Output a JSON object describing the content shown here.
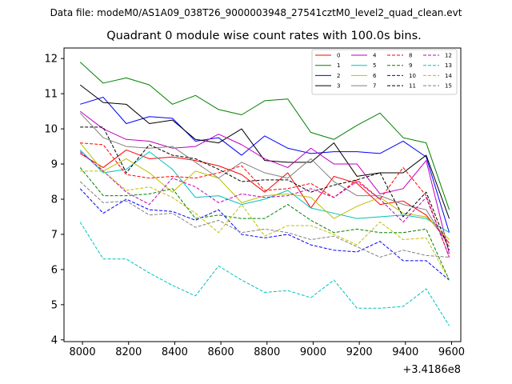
{
  "chart_data": {
    "type": "line",
    "suptitle": "Data file: modeM0/AS1A09_038T26_9000003948_27541cztM0_level2_quad_clean.evt",
    "title": "Quadrant 0 module wise count rates with 100.0s bins.",
    "xlabel": "",
    "ylabel": "",
    "x_offset_label": "+3.4186e8",
    "xlim": [
      7920,
      9640
    ],
    "ylim": [
      3.95,
      12.3
    ],
    "x_ticks": [
      8000,
      8200,
      8400,
      8600,
      8800,
      9000,
      9200,
      9400,
      9600
    ],
    "x_tick_labels": [
      "8000",
      "8200",
      "8400",
      "8600",
      "8800",
      "9000",
      "9200",
      "9400",
      "9600"
    ],
    "y_ticks": [
      4,
      5,
      6,
      7,
      8,
      9,
      10,
      11,
      12
    ],
    "y_tick_labels": [
      "4",
      "5",
      "6",
      "7",
      "8",
      "9",
      "10",
      "11",
      "12"
    ],
    "legend_position": "top-right",
    "x": [
      7990,
      8090,
      8190,
      8290,
      8390,
      8490,
      8590,
      8690,
      8790,
      8890,
      8990,
      9090,
      9190,
      9290,
      9390,
      9490,
      9590
    ],
    "series": [
      {
        "name": "0",
        "color": "#ff0000",
        "dash": "solid",
        "values": [
          9.3,
          8.9,
          9.4,
          9.15,
          9.2,
          9.1,
          8.95,
          8.7,
          8.2,
          8.75,
          7.75,
          8.65,
          8.45,
          7.85,
          7.95,
          7.55,
          6.75
        ]
      },
      {
        "name": "1",
        "color": "#008000",
        "dash": "solid",
        "values": [
          11.9,
          11.3,
          11.45,
          11.25,
          10.7,
          10.95,
          10.55,
          10.4,
          10.8,
          10.85,
          9.9,
          9.7,
          10.1,
          10.45,
          9.75,
          9.6,
          7.7
        ]
      },
      {
        "name": "2",
        "color": "#0000ff",
        "dash": "solid",
        "values": [
          10.7,
          10.9,
          10.15,
          10.35,
          10.3,
          9.65,
          9.75,
          9.25,
          9.8,
          9.45,
          9.3,
          9.35,
          9.35,
          9.3,
          9.65,
          9.2,
          7.05
        ]
      },
      {
        "name": "3",
        "color": "#000000",
        "dash": "solid",
        "values": [
          11.25,
          10.75,
          10.7,
          10.15,
          10.25,
          9.7,
          9.6,
          10.0,
          9.1,
          9.05,
          9.05,
          9.6,
          8.65,
          8.75,
          8.75,
          9.25,
          7.45
        ]
      },
      {
        "name": "4",
        "color": "#bf00bf",
        "dash": "solid",
        "values": [
          10.5,
          10.0,
          9.7,
          9.65,
          9.45,
          9.5,
          9.85,
          9.55,
          9.15,
          8.9,
          9.45,
          9.0,
          9.0,
          8.15,
          8.3,
          9.1,
          6.45
        ]
      },
      {
        "name": "5",
        "color": "#00bfbf",
        "dash": "solid",
        "values": [
          9.4,
          8.75,
          8.85,
          9.35,
          8.85,
          8.05,
          8.1,
          7.85,
          8.0,
          8.25,
          7.75,
          7.6,
          7.45,
          7.5,
          7.55,
          7.45,
          7.05
        ]
      },
      {
        "name": "6",
        "color": "#bfbf00",
        "dash": "solid",
        "values": [
          9.6,
          8.8,
          9.15,
          8.75,
          8.2,
          8.8,
          8.6,
          7.9,
          8.1,
          8.15,
          8.05,
          7.45,
          7.8,
          8.05,
          7.6,
          7.5,
          6.85
        ]
      },
      {
        "name": "7",
        "color": "#808080",
        "dash": "solid",
        "values": [
          10.45,
          9.75,
          9.5,
          9.45,
          9.5,
          9.05,
          8.6,
          9.05,
          8.75,
          8.6,
          9.15,
          8.5,
          8.1,
          8.1,
          7.85,
          7.7,
          6.65
        ]
      },
      {
        "name": "8",
        "color": "#ff0000",
        "dash": "dashed",
        "values": [
          9.6,
          9.55,
          8.7,
          8.6,
          8.65,
          8.6,
          8.75,
          8.95,
          8.25,
          8.3,
          8.45,
          8.05,
          8.55,
          8.0,
          8.9,
          8.1,
          6.35
        ]
      },
      {
        "name": "9",
        "color": "#008000",
        "dash": "dashed",
        "values": [
          8.9,
          8.1,
          8.1,
          8.15,
          8.3,
          7.45,
          7.55,
          7.45,
          7.45,
          7.85,
          7.4,
          7.05,
          7.15,
          7.05,
          7.05,
          7.15,
          5.7
        ]
      },
      {
        "name": "10",
        "color": "#0000ff",
        "dash": "dashed",
        "values": [
          8.3,
          7.6,
          8.0,
          7.7,
          7.65,
          7.4,
          7.7,
          7.0,
          6.9,
          7.0,
          6.7,
          6.55,
          6.5,
          6.8,
          6.25,
          6.25,
          5.7
        ]
      },
      {
        "name": "11",
        "color": "#000000",
        "dash": "dashed",
        "values": [
          10.05,
          10.05,
          8.75,
          9.55,
          9.25,
          9.15,
          8.85,
          8.5,
          8.55,
          8.55,
          8.2,
          8.4,
          8.55,
          8.75,
          7.5,
          8.2,
          6.55
        ]
      },
      {
        "name": "12",
        "color": "#bf00bf",
        "dash": "dashed",
        "values": [
          9.35,
          8.8,
          8.2,
          7.85,
          8.6,
          8.35,
          7.9,
          8.15,
          8.05,
          8.1,
          8.3,
          8.05,
          8.5,
          8.0,
          7.35,
          8.05,
          6.35
        ]
      },
      {
        "name": "13",
        "color": "#00bfbf",
        "dash": "dashed",
        "values": [
          7.35,
          6.3,
          6.3,
          5.9,
          5.55,
          5.25,
          6.1,
          5.7,
          5.35,
          5.4,
          5.2,
          5.7,
          4.9,
          4.9,
          4.95,
          5.45,
          4.4
        ]
      },
      {
        "name": "14",
        "color": "#bfbf00",
        "dash": "dashed",
        "values": [
          8.8,
          8.8,
          8.25,
          8.35,
          8.05,
          7.6,
          7.05,
          7.85,
          6.95,
          7.25,
          7.25,
          7.0,
          6.7,
          7.35,
          6.85,
          6.9,
          5.7
        ]
      },
      {
        "name": "15",
        "color": "#808080",
        "dash": "dashed",
        "values": [
          8.5,
          7.9,
          7.95,
          7.55,
          7.6,
          7.2,
          7.4,
          7.05,
          7.15,
          7.05,
          6.85,
          6.95,
          6.65,
          6.35,
          6.55,
          6.4,
          6.35
        ]
      }
    ]
  }
}
